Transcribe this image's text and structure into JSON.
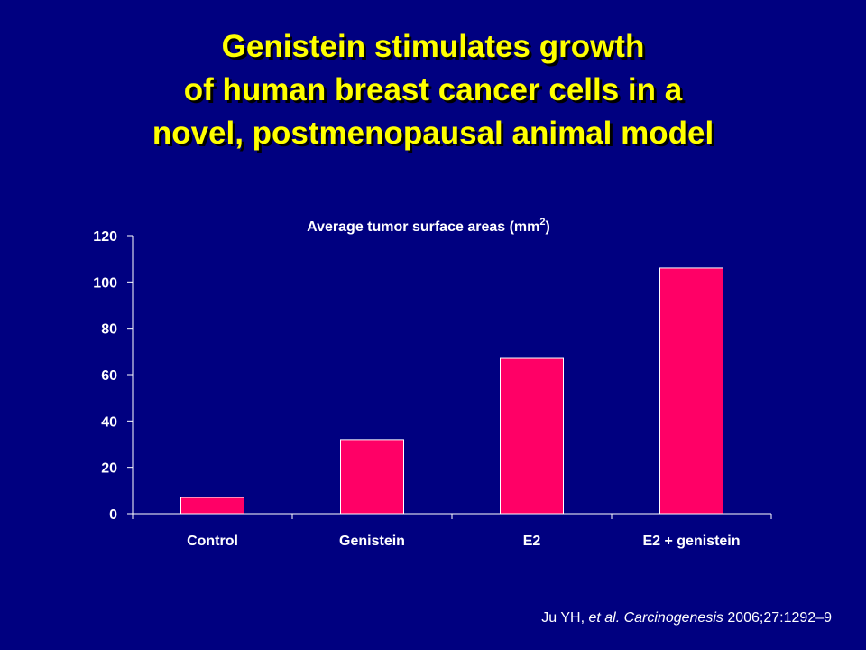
{
  "slide": {
    "title_lines": [
      "Genistein stimulates growth",
      "of human breast cancer cells in a",
      "novel, postmenopausal animal model"
    ]
  },
  "citation": {
    "authors": "Ju YH, ",
    "etal": "et al. ",
    "journal": "Carcinogenesis",
    "details": " 2006;27:1292–9"
  },
  "colors": {
    "background": "#000080",
    "title": "#ffff00",
    "bar": "#ff0066",
    "text": "#ffffff",
    "axis": "#ffffff"
  },
  "chart_data": {
    "type": "bar",
    "title": "Average tumor surface areas (mm",
    "title_superscript": "2",
    "title_suffix": ")",
    "categories": [
      "Control",
      "Genistein",
      "E2",
      "E2 + genistein"
    ],
    "values": [
      7,
      32,
      67,
      106
    ],
    "xlabel": "",
    "ylabel": "",
    "ylim": [
      0,
      120
    ],
    "yticks": [
      0,
      20,
      40,
      60,
      80,
      100,
      120
    ],
    "grid": false,
    "legend": "none"
  }
}
